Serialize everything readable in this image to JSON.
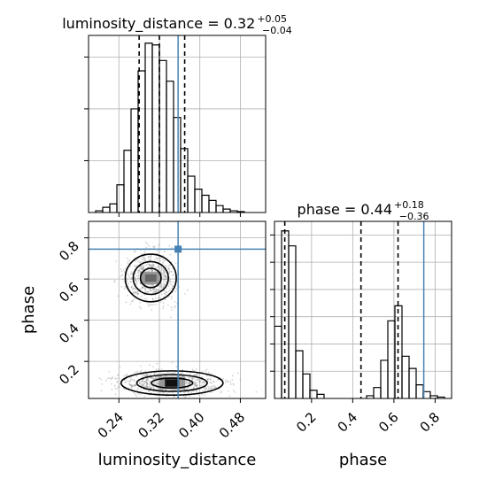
{
  "chart_data": {
    "type": "corner",
    "colors": {
      "truth": "#4682b4",
      "hist": "#000000",
      "quantile": "#000000",
      "points": "#808080"
    },
    "parameters": [
      "luminosity_distance",
      "phase"
    ],
    "truth": {
      "luminosity_distance": 0.357,
      "phase": 0.745
    },
    "panels": [
      {
        "id": "hist-luminosity-distance",
        "title": {
          "text": "luminosity_distance = 0.32",
          "plus": "+0.05",
          "minus": "−0.04"
        },
        "xlim": [
          0.18,
          0.53
        ],
        "ylim": [
          0,
          2050
        ],
        "bin_edges": [
          0.18,
          0.194,
          0.208,
          0.222,
          0.236,
          0.25,
          0.264,
          0.278,
          0.292,
          0.306,
          0.32,
          0.334,
          0.348,
          0.362,
          0.376,
          0.39,
          0.404,
          0.418,
          0.432,
          0.446,
          0.46,
          0.474,
          0.488,
          0.502,
          0.516,
          0.53
        ],
        "counts": [
          0,
          20,
          60,
          100,
          320,
          720,
          1200,
          1640,
          1960,
          1940,
          1760,
          1520,
          1100,
          740,
          420,
          270,
          200,
          140,
          80,
          40,
          20,
          10,
          0,
          0,
          0
        ],
        "quantiles": [
          0.28,
          0.32,
          0.37
        ]
      },
      {
        "id": "scatter-luminosity-distance-phase",
        "xlabel": "luminosity_distance",
        "ylabel": "phase",
        "xlim": [
          0.18,
          0.53
        ],
        "ylim": [
          0.02,
          0.88
        ],
        "xticks": [
          0.24,
          0.32,
          0.4,
          0.48
        ],
        "xticklabels": [
          "0.24",
          "0.32",
          "0.40",
          "0.48"
        ],
        "yticks": [
          0.2,
          0.4,
          0.6,
          0.8
        ],
        "yticklabels": [
          "0.2",
          "0.4",
          "0.6",
          "0.8"
        ],
        "blobs": [
          {
            "cx": 0.303,
            "cy": 0.605,
            "sx": 0.024,
            "sy": 0.055
          },
          {
            "cx": 0.345,
            "cy": 0.095,
            "sx": 0.048,
            "sy": 0.028
          }
        ]
      },
      {
        "id": "hist-phase",
        "title": {
          "text": "phase = 0.44",
          "plus": "+0.18",
          "minus": "−0.36"
        },
        "xlabel": "phase",
        "xlim": [
          0.02,
          0.88
        ],
        "ylim": [
          0,
          2600
        ],
        "xticks": [
          0.2,
          0.4,
          0.6,
          0.8
        ],
        "xticklabels": [
          "0.2",
          "0.4",
          "0.6",
          "0.8"
        ],
        "bin_edges": [
          0.02,
          0.0544,
          0.0888,
          0.1232,
          0.1576,
          0.192,
          0.2264,
          0.2608,
          0.2952,
          0.3296,
          0.364,
          0.3984,
          0.4328,
          0.4672,
          0.5016,
          0.536,
          0.5704,
          0.6048,
          0.6392,
          0.6736,
          0.708,
          0.7424,
          0.7768,
          0.8112,
          0.8456,
          0.88
        ],
        "counts": [
          1060,
          2460,
          2240,
          700,
          360,
          120,
          60,
          0,
          0,
          0,
          0,
          0,
          0,
          40,
          160,
          560,
          1140,
          1360,
          620,
          440,
          200,
          100,
          40,
          20,
          0
        ],
        "quantiles": [
          0.07,
          0.44,
          0.62
        ]
      }
    ]
  }
}
